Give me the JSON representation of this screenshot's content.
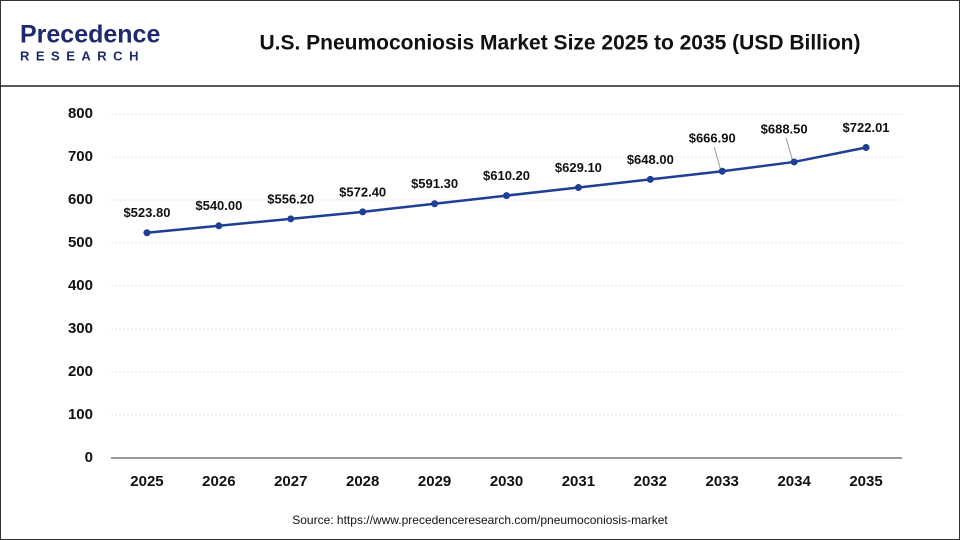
{
  "logo": {
    "name": "Precedence",
    "tagline": "RESEARCH"
  },
  "chart_data": {
    "type": "line",
    "title": "U.S. Pneumoconiosis Market Size 2025 to 2035 (USD Billion)",
    "categories": [
      "2025",
      "2026",
      "2027",
      "2028",
      "2029",
      "2030",
      "2031",
      "2032",
      "2033",
      "2034",
      "2035"
    ],
    "values": [
      523.8,
      540.0,
      556.2,
      572.4,
      591.3,
      610.2,
      629.1,
      648.0,
      666.9,
      688.5,
      722.01
    ],
    "value_labels": [
      "$523.80",
      "$540.00",
      "$556.20",
      "$572.40",
      "$591.30",
      "$610.20",
      "$629.10",
      "$648.00",
      "$666.90",
      "$688.50",
      "$722.01"
    ],
    "color": "#1f3f95",
    "ylim": [
      0,
      800
    ],
    "yticks": [
      0,
      100,
      200,
      300,
      400,
      500,
      600,
      700,
      800
    ],
    "grid": true,
    "source": "Source: https://www.precedenceresearch.com/pneumoconiosis-market"
  }
}
